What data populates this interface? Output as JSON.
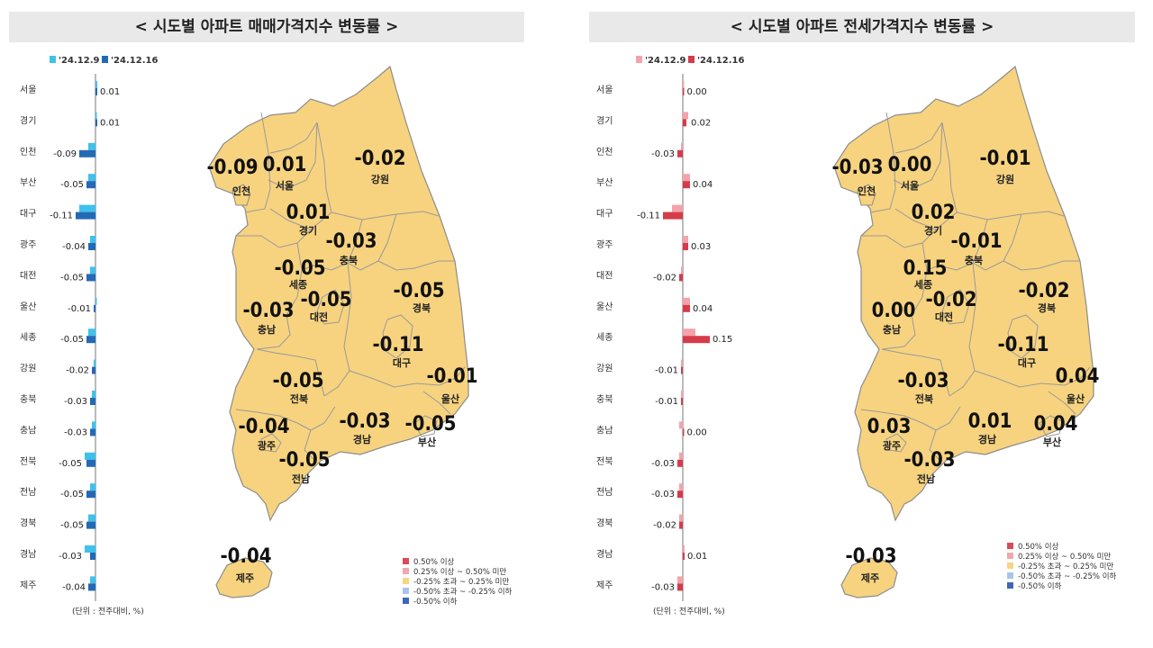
{
  "chart_data": [
    {
      "type": "bar",
      "title": "< 시도별 아파트 매매가격지수 변동률 >",
      "legend": [
        "'24.12.9",
        "'24.12.16"
      ],
      "unit_note": "(단위 : 전주대비, %)",
      "colors": {
        "prev": "#3fc1ec",
        "curr": "#2469b5",
        "map": "#f7d37f",
        "map_border": "#8c8c8c"
      },
      "categories": [
        "서울",
        "경기",
        "인천",
        "부산",
        "대구",
        "광주",
        "대전",
        "울산",
        "세종",
        "강원",
        "충북",
        "충남",
        "전북",
        "전남",
        "경북",
        "경남",
        "제주"
      ],
      "series": [
        {
          "name": "'24.12.9",
          "values": [
            0.01,
            0.0,
            -0.04,
            -0.04,
            -0.09,
            -0.03,
            -0.03,
            0.0,
            -0.04,
            -0.01,
            -0.02,
            -0.02,
            -0.06,
            -0.03,
            -0.04,
            -0.06,
            -0.03
          ]
        },
        {
          "name": "'24.12.16",
          "values": [
            0.01,
            0.01,
            -0.09,
            -0.05,
            -0.11,
            -0.04,
            -0.05,
            -0.01,
            -0.05,
            -0.02,
            -0.03,
            -0.03,
            -0.05,
            -0.05,
            -0.05,
            -0.03,
            -0.04
          ]
        }
      ],
      "value_labels": [
        "0.01",
        "0.01",
        "-0.09",
        "-0.05",
        "-0.11",
        "-0.04",
        "-0.05",
        "-0.01",
        "-0.05",
        "-0.02",
        "-0.03",
        "-0.03",
        "-0.05",
        "-0.05",
        "-0.05",
        "-0.03",
        "-0.04"
      ],
      "map_labels": [
        {
          "region": "인천",
          "value": "-0.09"
        },
        {
          "region": "서울",
          "value": "0.01"
        },
        {
          "region": "강원",
          "value": "-0.02"
        },
        {
          "region": "경기",
          "value": "0.01"
        },
        {
          "region": "충북",
          "value": "-0.03"
        },
        {
          "region": "세종",
          "value": "-0.05"
        },
        {
          "region": "대전",
          "value": "-0.05"
        },
        {
          "region": "충남",
          "value": "-0.03"
        },
        {
          "region": "경북",
          "value": "-0.05"
        },
        {
          "region": "대구",
          "value": "-0.11"
        },
        {
          "region": "울산",
          "value": "-0.01"
        },
        {
          "region": "전북",
          "value": "-0.05"
        },
        {
          "region": "광주",
          "value": "-0.04"
        },
        {
          "region": "경남",
          "value": "-0.03"
        },
        {
          "region": "부산",
          "value": "-0.05"
        },
        {
          "region": "전남",
          "value": "-0.05"
        },
        {
          "region": "제주",
          "value": "-0.04"
        }
      ],
      "map_legend": [
        {
          "label": "0.50% 이상",
          "color": "#d94a57"
        },
        {
          "label": "0.25% 이상 ~ 0.50% 미만",
          "color": "#f0a7ad"
        },
        {
          "label": "-0.25% 초과 ~ 0.25% 미만",
          "color": "#f6d682"
        },
        {
          "label": "-0.50% 초과 ~ -0.25% 이하",
          "color": "#aac4ea"
        },
        {
          "label": "-0.50% 이하",
          "color": "#3f66b6"
        }
      ]
    },
    {
      "type": "bar",
      "title": "< 시도별 아파트 전세가격지수 변동률 >",
      "legend": [
        "'24.12.9",
        "'24.12.16"
      ],
      "unit_note": "(단위 : 전주대비, %)",
      "colors": {
        "prev": "#f4a3aa",
        "curr": "#d63b4a",
        "map": "#f7d37f",
        "map_border": "#8c8c8c"
      },
      "categories": [
        "서울",
        "경기",
        "인천",
        "부산",
        "대구",
        "광주",
        "대전",
        "울산",
        "세종",
        "강원",
        "충북",
        "충남",
        "전북",
        "전남",
        "경북",
        "경남",
        "제주"
      ],
      "series": [
        {
          "name": "'24.12.9",
          "values": [
            0.0,
            0.03,
            -0.01,
            0.04,
            -0.06,
            0.03,
            -0.01,
            0.04,
            0.07,
            -0.01,
            -0.01,
            -0.02,
            -0.02,
            -0.02,
            -0.02,
            0.01,
            -0.03
          ]
        },
        {
          "name": "'24.12.16",
          "values": [
            0.0,
            0.02,
            -0.03,
            0.04,
            -0.11,
            0.03,
            -0.02,
            0.04,
            0.15,
            -0.01,
            -0.01,
            0.0,
            -0.03,
            -0.03,
            -0.02,
            0.01,
            -0.03
          ]
        }
      ],
      "value_labels": [
        "0.00",
        "0.02",
        "-0.03",
        "0.04",
        "-0.11",
        "0.03",
        "-0.02",
        "0.04",
        "0.15",
        "-0.01",
        "-0.01",
        "0.00",
        "-0.03",
        "-0.03",
        "-0.02",
        "0.01",
        "-0.03"
      ],
      "map_labels": [
        {
          "region": "인천",
          "value": "-0.03"
        },
        {
          "region": "서울",
          "value": "0.00"
        },
        {
          "region": "강원",
          "value": "-0.01"
        },
        {
          "region": "경기",
          "value": "0.02"
        },
        {
          "region": "충북",
          "value": "-0.01"
        },
        {
          "region": "세종",
          "value": "0.15"
        },
        {
          "region": "대전",
          "value": "-0.02"
        },
        {
          "region": "충남",
          "value": "0.00"
        },
        {
          "region": "경북",
          "value": "-0.02"
        },
        {
          "region": "대구",
          "value": "-0.11"
        },
        {
          "region": "울산",
          "value": "0.04"
        },
        {
          "region": "전북",
          "value": "-0.03"
        },
        {
          "region": "광주",
          "value": "0.03"
        },
        {
          "region": "경남",
          "value": "0.01"
        },
        {
          "region": "부산",
          "value": "0.04"
        },
        {
          "region": "전남",
          "value": "-0.03"
        },
        {
          "region": "제주",
          "value": "-0.03"
        }
      ],
      "map_legend": [
        {
          "label": "0.50% 이상",
          "color": "#d94a57"
        },
        {
          "label": "0.25% 이상 ~ 0.50% 미만",
          "color": "#f0a7ad"
        },
        {
          "label": "-0.25% 초과 ~ 0.25% 미만",
          "color": "#f6d682"
        },
        {
          "label": "-0.50% 초과 ~ -0.25% 이하",
          "color": "#aac4ea"
        },
        {
          "label": "-0.50% 이하",
          "color": "#3f66b6"
        }
      ]
    }
  ]
}
